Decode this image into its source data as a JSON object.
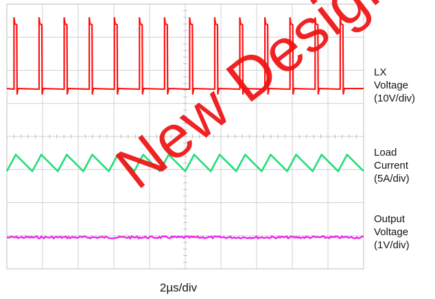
{
  "chart_data": {
    "type": "line",
    "title": "",
    "xlabel": "2µs/div",
    "ylabel": "",
    "grid": true,
    "divisions": {
      "x": 10,
      "y": 8
    },
    "series": [
      {
        "name_lines": [
          "LX",
          "Voltage",
          "(10V/div)"
        ],
        "color": "#ff1010",
        "shape": "pulse",
        "pulse_count": 14,
        "low_div": 5.45,
        "high_div": 7.4
      },
      {
        "name_lines": [
          "Load",
          "Current",
          "(5A/div)"
        ],
        "color": "#22dd77",
        "shape": "sawtooth",
        "cycle_count": 14,
        "low_div": 2.95,
        "high_div": 3.45
      },
      {
        "name_lines": [
          "Output",
          "Voltage",
          "(1V/div)"
        ],
        "color": "#ee22ee",
        "shape": "flat",
        "level_div": 0.95
      }
    ]
  },
  "watermark": "New Designs"
}
